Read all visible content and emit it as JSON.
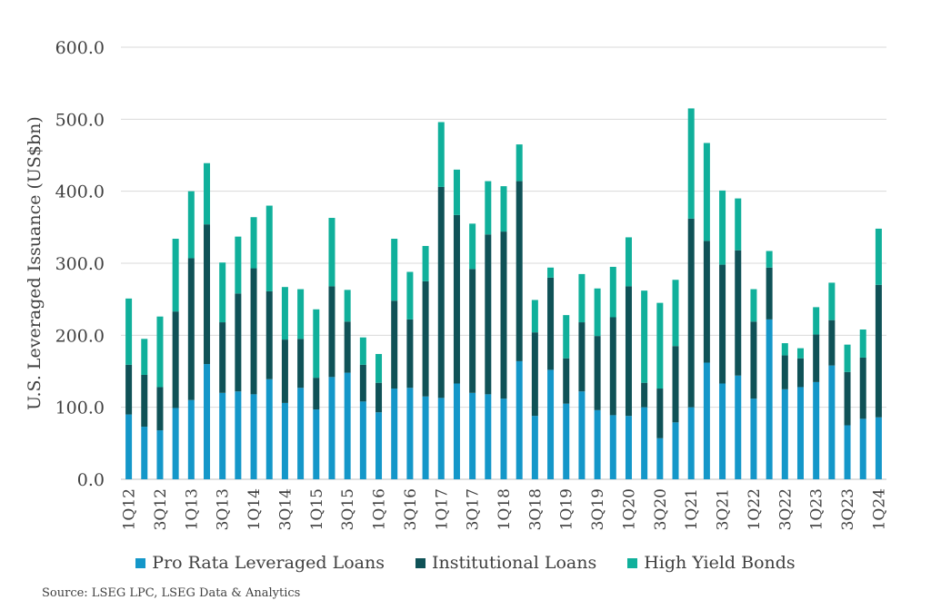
{
  "chart_data": {
    "type": "bar",
    "stacked": true,
    "ylabel": "U.S. Leveraged Issuance (US$bn)",
    "ylim": [
      0,
      600
    ],
    "yticks": [
      "0.0",
      "100.0",
      "200.0",
      "300.0",
      "400.0",
      "500.0",
      "600.0"
    ],
    "grid": true,
    "legend_position": "bottom",
    "categories": [
      "1Q12",
      "2Q12",
      "3Q12",
      "4Q12",
      "1Q13",
      "2Q13",
      "3Q13",
      "4Q13",
      "1Q14",
      "2Q14",
      "3Q14",
      "4Q14",
      "1Q15",
      "2Q15",
      "3Q15",
      "4Q15",
      "1Q16",
      "2Q16",
      "3Q16",
      "4Q16",
      "1Q17",
      "2Q17",
      "3Q17",
      "4Q17",
      "1Q18",
      "2Q18",
      "3Q18",
      "4Q18",
      "1Q19",
      "2Q19",
      "3Q19",
      "4Q19",
      "1Q20",
      "2Q20",
      "3Q20",
      "4Q20",
      "1Q21",
      "2Q21",
      "3Q21",
      "4Q21",
      "1Q22",
      "2Q22",
      "3Q22",
      "4Q22",
      "1Q23",
      "2Q23",
      "3Q23",
      "4Q23",
      "1Q24"
    ],
    "x_tick_labels": [
      "1Q12",
      "3Q12",
      "1Q13",
      "3Q13",
      "1Q14",
      "3Q14",
      "1Q15",
      "3Q15",
      "1Q16",
      "3Q16",
      "1Q17",
      "3Q17",
      "1Q18",
      "3Q18",
      "1Q19",
      "3Q19",
      "1Q20",
      "3Q20",
      "1Q21",
      "3Q21",
      "1Q22",
      "3Q22",
      "1Q23",
      "3Q23",
      "1Q24"
    ],
    "series": [
      {
        "name": "Pro Rata Leveraged Loans",
        "color": "#1497c9",
        "values": [
          90,
          73,
          68,
          99,
          110,
          160,
          120,
          122,
          118,
          139,
          106,
          127,
          97,
          142,
          148,
          108,
          93,
          126,
          127,
          115,
          113,
          133,
          120,
          118,
          112,
          164,
          88,
          152,
          105,
          122,
          96,
          89,
          88,
          100,
          57,
          79,
          100,
          162,
          133,
          144,
          112,
          222,
          125,
          128,
          135,
          158,
          75,
          84,
          86
        ]
      },
      {
        "name": "Institutional Loans",
        "color": "#0f5257",
        "values": [
          69,
          72,
          60,
          134,
          197,
          194,
          98,
          136,
          175,
          122,
          88,
          68,
          44,
          126,
          71,
          51,
          41,
          122,
          95,
          160,
          293,
          234,
          172,
          222,
          232,
          250,
          116,
          128,
          63,
          96,
          103,
          136,
          180,
          34,
          69,
          106,
          262,
          169,
          165,
          174,
          107,
          72,
          47,
          40,
          66,
          63,
          74,
          85,
          184
        ]
      },
      {
        "name": "High Yield Bonds",
        "color": "#10b09b",
        "values": [
          92,
          50,
          98,
          101,
          93,
          85,
          83,
          79,
          71,
          119,
          73,
          69,
          95,
          95,
          44,
          38,
          40,
          86,
          66,
          49,
          90,
          63,
          63,
          74,
          63,
          51,
          45,
          14,
          60,
          67,
          66,
          70,
          68,
          128,
          119,
          92,
          153,
          136,
          103,
          72,
          45,
          23,
          17,
          14,
          38,
          52,
          38,
          39,
          78
        ]
      }
    ]
  },
  "source": "Source:  LSEG LPC, LSEG Data & Analytics"
}
